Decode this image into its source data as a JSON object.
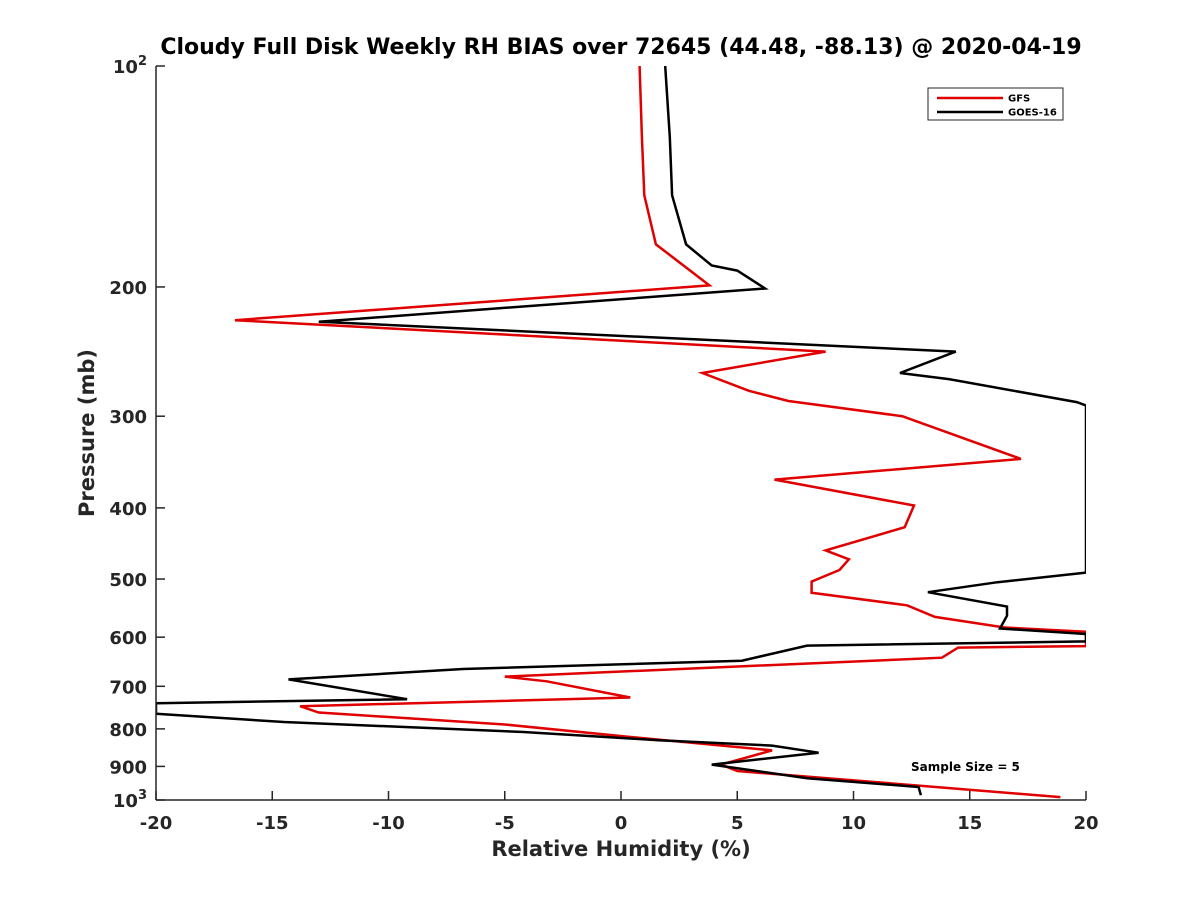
{
  "chart_data": {
    "type": "line",
    "title": "Cloudy Full Disk Weekly RH BIAS over 72645 (44.48, -88.13) @ 2020-04-19",
    "xlabel": "Relative Humidity (%)",
    "ylabel": "Pressure (mb)",
    "xlim": [
      -20,
      20
    ],
    "ylim": [
      100,
      1000
    ],
    "y_scale": "log",
    "y_reversed": true,
    "grid": false,
    "legend_position": "top-right",
    "x_ticks": [
      -20,
      -15,
      -10,
      -5,
      0,
      5,
      10,
      15,
      20
    ],
    "x_tick_labels": [
      "-20",
      "-15",
      "-10",
      "-5",
      "0",
      "5",
      "10",
      "15",
      "20"
    ],
    "y_ticks": [
      100,
      200,
      300,
      400,
      500,
      600,
      700,
      800,
      900,
      1000
    ],
    "y_tick_labels": [
      {
        "base": "10",
        "exp": "2"
      },
      {
        "base": "200",
        "exp": ""
      },
      {
        "base": "300",
        "exp": ""
      },
      {
        "base": "400",
        "exp": ""
      },
      {
        "base": "500",
        "exp": ""
      },
      {
        "base": "600",
        "exp": ""
      },
      {
        "base": "700",
        "exp": ""
      },
      {
        "base": "800",
        "exp": ""
      },
      {
        "base": "900",
        "exp": ""
      },
      {
        "base": "10",
        "exp": "3"
      }
    ],
    "annotation": "Sample Size = 5",
    "series": [
      {
        "name": "GFS",
        "color": "#e00000",
        "points": [
          [
            0.8,
            100
          ],
          [
            0.9,
            125
          ],
          [
            1.0,
            150
          ],
          [
            1.5,
            175
          ],
          [
            2.5,
            185
          ],
          [
            3.8,
            199
          ],
          [
            -16.6,
            222
          ],
          [
            8.8,
            245
          ],
          [
            3.5,
            262
          ],
          [
            5.5,
            277
          ],
          [
            7.2,
            286
          ],
          [
            12.1,
            300
          ],
          [
            17.2,
            343
          ],
          [
            6.6,
            366
          ],
          [
            12.6,
            397
          ],
          [
            12.2,
            425
          ],
          [
            8.8,
            457
          ],
          [
            9.8,
            470
          ],
          [
            9.4,
            486
          ],
          [
            8.2,
            504
          ],
          [
            8.2,
            522
          ],
          [
            12.3,
            543
          ],
          [
            13.5,
            563
          ],
          [
            16.5,
            582
          ],
          [
            20,
            590
          ],
          [
            20,
            617
          ],
          [
            14.5,
            620
          ],
          [
            13.8,
            640
          ],
          [
            -5.0,
            679
          ],
          [
            -3.2,
            689
          ],
          [
            0.4,
            725
          ],
          [
            -13.8,
            745
          ],
          [
            -13.0,
            760
          ],
          [
            -5.0,
            789
          ],
          [
            0.3,
            820
          ],
          [
            6.5,
            856
          ],
          [
            4.3,
            895
          ],
          [
            5.0,
            913
          ],
          [
            13.0,
            957
          ],
          [
            18.9,
            991
          ]
        ]
      },
      {
        "name": "GOES-16",
        "color": "#000000",
        "points": [
          [
            1.9,
            100
          ],
          [
            2.1,
            125
          ],
          [
            2.2,
            150
          ],
          [
            2.8,
            175
          ],
          [
            3.9,
            187
          ],
          [
            5.0,
            190
          ],
          [
            6.2,
            201
          ],
          [
            -13.0,
            223
          ],
          [
            14.4,
            245
          ],
          [
            12.0,
            262
          ],
          [
            14.1,
            267
          ],
          [
            19.6,
            287
          ],
          [
            20,
            290
          ],
          [
            20,
            490
          ],
          [
            16.2,
            505
          ],
          [
            13.2,
            521
          ],
          [
            16.6,
            545
          ],
          [
            16.6,
            561
          ],
          [
            16.3,
            584
          ],
          [
            20,
            594
          ],
          [
            20,
            608
          ],
          [
            8.0,
            616
          ],
          [
            5.2,
            646
          ],
          [
            -6.8,
            663
          ],
          [
            -14.3,
            685
          ],
          [
            -9.2,
            729
          ],
          [
            -20,
            738
          ],
          [
            -20,
            763
          ],
          [
            -14.5,
            783
          ],
          [
            -4.2,
            808
          ],
          [
            1.6,
            829
          ],
          [
            6.5,
            843
          ],
          [
            8.5,
            862
          ],
          [
            3.9,
            895
          ],
          [
            8.0,
            934
          ],
          [
            12.8,
            960
          ],
          [
            12.9,
            985
          ]
        ]
      }
    ]
  }
}
